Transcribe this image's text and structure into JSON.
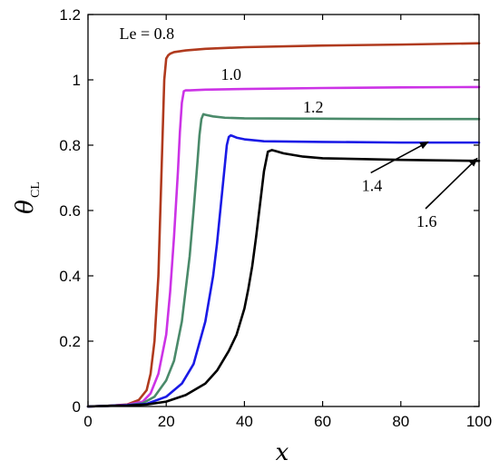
{
  "chart_data": {
    "type": "line",
    "xlabel": "x",
    "ylabel": "θ",
    "ylabel_subscript": "CL",
    "xlim": [
      0,
      100
    ],
    "ylim": [
      0,
      1.2
    ],
    "xticks": [
      0,
      20,
      40,
      60,
      80,
      100
    ],
    "yticks": [
      0,
      0.2,
      0.4,
      0.6,
      0.8,
      1,
      1.2
    ],
    "xtick_labels": [
      "0",
      "20",
      "40",
      "60",
      "80",
      "100"
    ],
    "ytick_labels": [
      "0",
      "0.2",
      "0.4",
      "0.6",
      "0.8",
      "1",
      "1.2"
    ],
    "grid": false,
    "series": [
      {
        "name": "Le = 0.8",
        "color": "#b03a1e",
        "x": [
          0,
          5,
          10,
          13,
          15,
          16,
          17,
          18,
          18.5,
          19,
          19.5,
          20,
          20.5,
          21,
          22,
          25,
          30,
          40,
          60,
          80,
          100
        ],
        "y": [
          0,
          0.002,
          0.006,
          0.02,
          0.05,
          0.1,
          0.2,
          0.4,
          0.6,
          0.8,
          1.0,
          1.065,
          1.075,
          1.08,
          1.085,
          1.09,
          1.095,
          1.1,
          1.105,
          1.108,
          1.112
        ]
      },
      {
        "name": "1.0",
        "color": "#cc33e6",
        "x": [
          0,
          5,
          10,
          14,
          16,
          18,
          20,
          21,
          22,
          23,
          23.5,
          24,
          24.5,
          25,
          26,
          30,
          40,
          60,
          80,
          100
        ],
        "y": [
          0,
          0.002,
          0.005,
          0.015,
          0.04,
          0.1,
          0.22,
          0.35,
          0.52,
          0.72,
          0.84,
          0.93,
          0.965,
          0.968,
          0.968,
          0.97,
          0.972,
          0.975,
          0.977,
          0.978
        ]
      },
      {
        "name": "1.2",
        "color": "#4a8a6a",
        "x": [
          0,
          5,
          10,
          14,
          17,
          20,
          22,
          24,
          26,
          27,
          28,
          28.5,
          29,
          29.5,
          30,
          32,
          35,
          40,
          60,
          80,
          100
        ],
        "y": [
          0,
          0.002,
          0.004,
          0.01,
          0.03,
          0.08,
          0.14,
          0.26,
          0.46,
          0.6,
          0.75,
          0.83,
          0.88,
          0.895,
          0.893,
          0.888,
          0.884,
          0.882,
          0.881,
          0.88,
          0.88
        ]
      },
      {
        "name": "1.4",
        "color": "#1a1ae6",
        "x": [
          0,
          5,
          10,
          15,
          20,
          24,
          27,
          30,
          32,
          33,
          34,
          35,
          35.5,
          36,
          36.5,
          37,
          38,
          40,
          45,
          60,
          80,
          100
        ],
        "y": [
          0,
          0.002,
          0.004,
          0.008,
          0.03,
          0.07,
          0.13,
          0.26,
          0.4,
          0.5,
          0.62,
          0.74,
          0.8,
          0.825,
          0.83,
          0.828,
          0.823,
          0.818,
          0.812,
          0.81,
          0.808,
          0.808
        ]
      },
      {
        "name": "1.6",
        "color": "#000000",
        "x": [
          0,
          5,
          10,
          15,
          20,
          25,
          30,
          33,
          36,
          38,
          40,
          41,
          42,
          43,
          44,
          45,
          46,
          47,
          48,
          50,
          55,
          60,
          80,
          100
        ],
        "y": [
          0,
          0.002,
          0.003,
          0.006,
          0.015,
          0.035,
          0.07,
          0.11,
          0.17,
          0.22,
          0.3,
          0.36,
          0.43,
          0.52,
          0.62,
          0.72,
          0.78,
          0.785,
          0.782,
          0.775,
          0.765,
          0.76,
          0.755,
          0.752
        ]
      }
    ],
    "annotations": [
      {
        "text": "Le = 0.8",
        "x": 8,
        "y": 1.125,
        "arrow": false
      },
      {
        "text": "1.0",
        "x": 34,
        "y": 1.0,
        "arrow": false
      },
      {
        "text": "1.2",
        "x": 55,
        "y": 0.9,
        "arrow": false
      },
      {
        "text": "1.4",
        "x": 70,
        "y": 0.66,
        "arrow": true,
        "arrow_to": [
          87,
          0.81
        ]
      },
      {
        "text": "1.6",
        "x": 84,
        "y": 0.55,
        "arrow": true,
        "arrow_to": [
          103,
          0.76
        ]
      }
    ]
  }
}
